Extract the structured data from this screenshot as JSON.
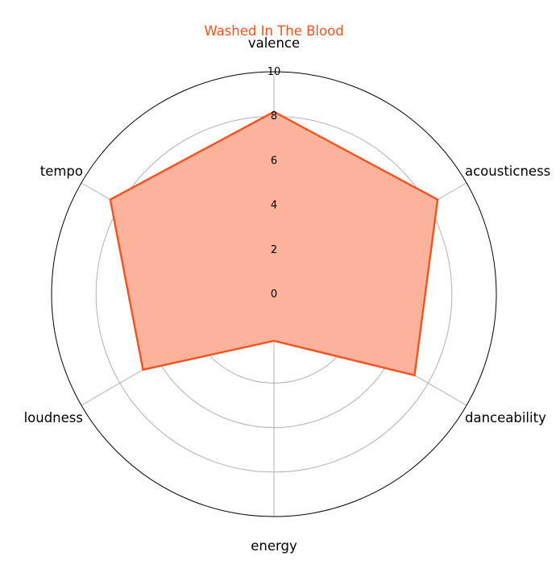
{
  "chart_data": {
    "type": "radar",
    "title": "Washed In The Blood",
    "title_color": "#f4511e",
    "axes": [
      "valence",
      "acousticness",
      "danceability",
      "energy",
      "loudness",
      "tempo"
    ],
    "ticks": [
      "0",
      "2",
      "4",
      "6",
      "8",
      "10"
    ],
    "rlim": [
      0,
      10
    ],
    "series": [
      {
        "values": [
          8.2,
          8.5,
          7.3,
          2.1,
          6.8,
          8.5
        ]
      }
    ],
    "line_color": "#f4511e",
    "fill_color": "#fbb39c",
    "grid": true
  }
}
